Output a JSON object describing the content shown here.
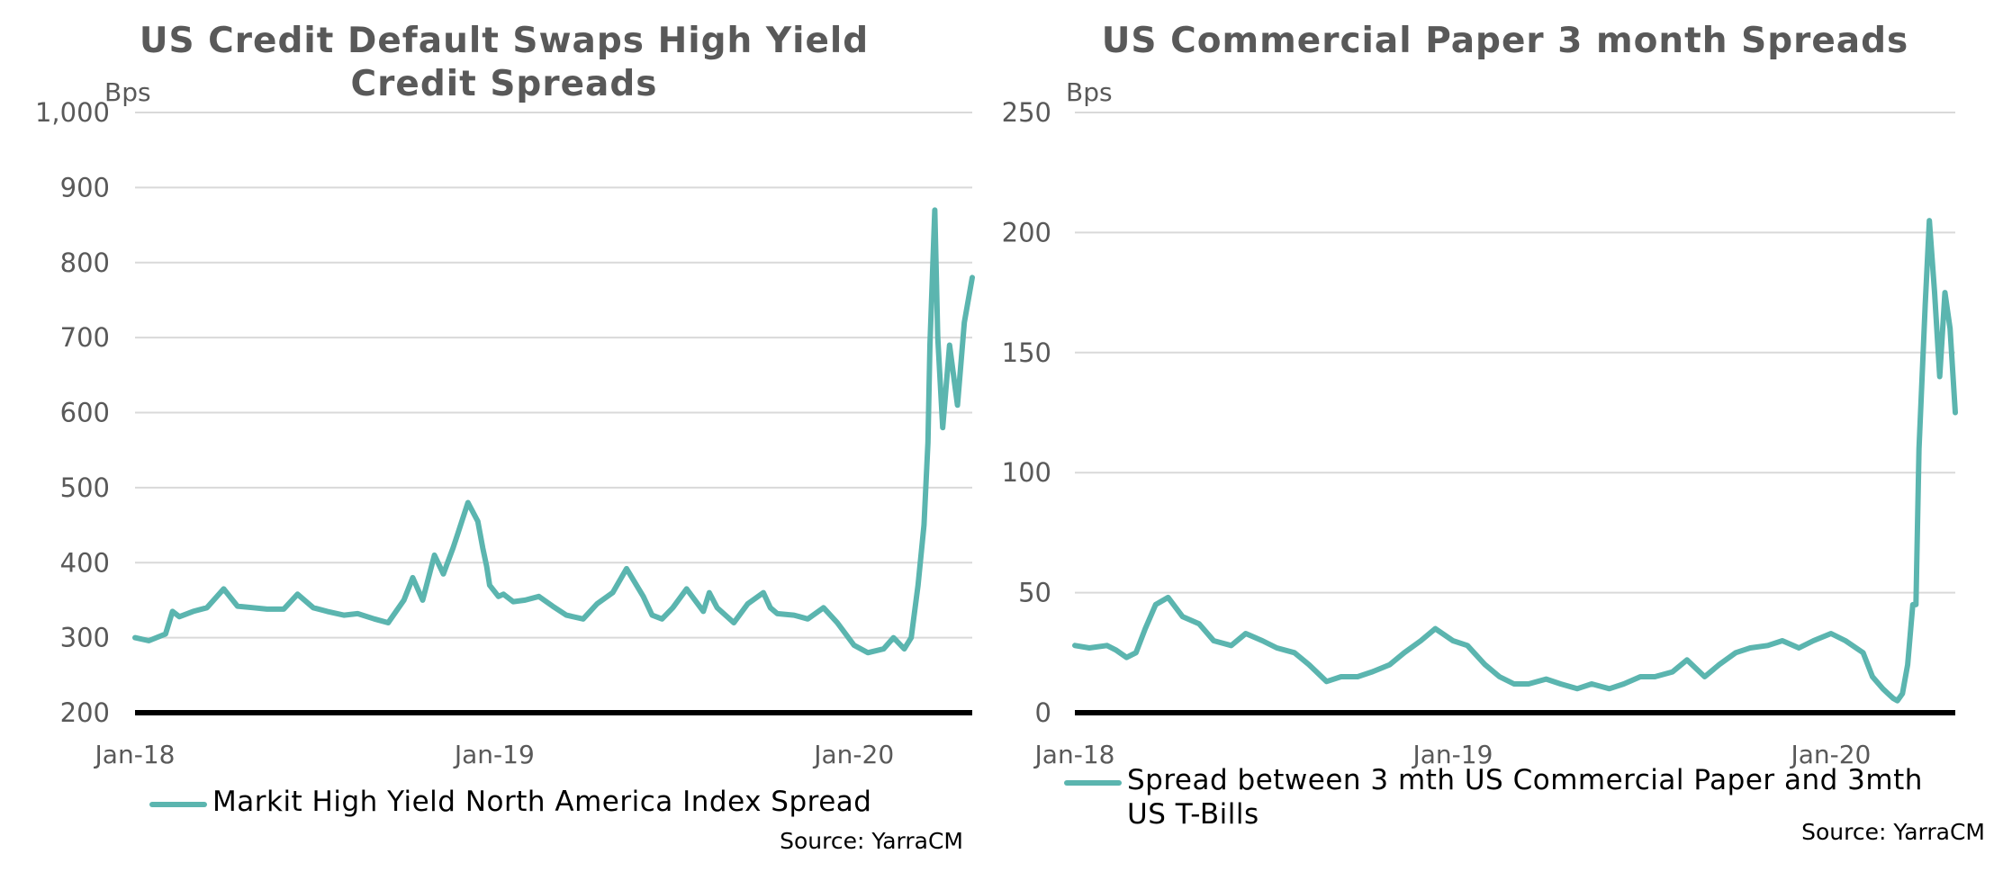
{
  "chart_data": [
    {
      "type": "line",
      "title": "US Credit Default Swaps High Yield Credit Spreads",
      "unit_label": "Bps",
      "ylim": [
        200,
        1000
      ],
      "y_ticks": [
        200,
        300,
        400,
        500,
        600,
        700,
        800,
        900,
        1000
      ],
      "y_tick_labels": [
        "200",
        "300",
        "400",
        "500",
        "600",
        "700",
        "800",
        "900",
        "1,000"
      ],
      "xlim": [
        "2018-01-01",
        "2020-04-30"
      ],
      "x_tick_labels": [
        {
          "date": "2018-01-01",
          "label": "Jan-18"
        },
        {
          "date": "2019-01-01",
          "label": "Jan-19"
        },
        {
          "date": "2020-01-01",
          "label": "Jan-20"
        }
      ],
      "grid": true,
      "legend_position": "bottom",
      "source": "Source: YarraCM",
      "line_color": "#5BB5AF",
      "series": [
        {
          "name": "Markit High Yield North America Index Spread",
          "x": [
            "2018-01-01",
            "2018-01-15",
            "2018-02-01",
            "2018-02-08",
            "2018-02-15",
            "2018-03-01",
            "2018-03-15",
            "2018-04-01",
            "2018-04-15",
            "2018-05-01",
            "2018-05-15",
            "2018-06-01",
            "2018-06-15",
            "2018-07-01",
            "2018-07-15",
            "2018-08-01",
            "2018-08-15",
            "2018-09-01",
            "2018-09-15",
            "2018-10-01",
            "2018-10-10",
            "2018-10-20",
            "2018-11-01",
            "2018-11-10",
            "2018-11-20",
            "2018-11-25",
            "2018-12-05",
            "2018-12-15",
            "2018-12-20",
            "2018-12-24",
            "2018-12-27",
            "2019-01-05",
            "2019-01-10",
            "2019-01-20",
            "2019-02-01",
            "2019-02-15",
            "2019-03-01",
            "2019-03-15",
            "2019-04-01",
            "2019-04-15",
            "2019-05-01",
            "2019-05-15",
            "2019-06-01",
            "2019-06-10",
            "2019-06-20",
            "2019-07-01",
            "2019-07-15",
            "2019-08-01",
            "2019-08-07",
            "2019-08-15",
            "2019-09-01",
            "2019-09-15",
            "2019-10-01",
            "2019-10-08",
            "2019-10-15",
            "2019-11-01",
            "2019-11-15",
            "2019-12-01",
            "2019-12-15",
            "2020-01-01",
            "2020-01-15",
            "2020-01-31",
            "2020-02-10",
            "2020-02-21",
            "2020-02-28",
            "2020-03-06",
            "2020-03-12",
            "2020-03-16",
            "2020-03-18",
            "2020-03-20",
            "2020-03-23",
            "2020-03-26",
            "2020-03-31",
            "2020-04-07",
            "2020-04-15",
            "2020-04-22",
            "2020-04-30"
          ],
          "values": [
            300,
            296,
            305,
            335,
            328,
            335,
            340,
            365,
            342,
            340,
            338,
            338,
            358,
            340,
            335,
            330,
            332,
            325,
            320,
            350,
            380,
            350,
            410,
            385,
            420,
            440,
            480,
            455,
            420,
            395,
            370,
            355,
            358,
            348,
            350,
            355,
            342,
            330,
            325,
            345,
            360,
            392,
            355,
            330,
            325,
            340,
            365,
            335,
            360,
            340,
            320,
            345,
            360,
            340,
            332,
            330,
            325,
            340,
            320,
            290,
            280,
            285,
            300,
            285,
            300,
            370,
            450,
            560,
            690,
            760,
            870,
            700,
            580,
            690,
            610,
            720,
            780
          ]
        }
      ]
    },
    {
      "type": "line",
      "title": "US Commercial Paper 3 month Spreads",
      "unit_label": "Bps",
      "ylim": [
        0,
        250
      ],
      "y_ticks": [
        0,
        50,
        100,
        150,
        200,
        250
      ],
      "y_tick_labels": [
        "0",
        "50",
        "100",
        "150",
        "200",
        "250"
      ],
      "xlim": [
        "2018-01-01",
        "2020-04-30"
      ],
      "x_tick_labels": [
        {
          "date": "2018-01-01",
          "label": "Jan-18"
        },
        {
          "date": "2019-01-01",
          "label": "Jan-19"
        },
        {
          "date": "2020-01-01",
          "label": "Jan-20"
        }
      ],
      "grid": true,
      "legend_position": "bottom",
      "source": "Source: YarraCM",
      "line_color": "#5BB5AF",
      "series": [
        {
          "name": "Spread between 3 mth US Commercial Paper and 3mth US T-Bills",
          "x": [
            "2018-01-01",
            "2018-01-15",
            "2018-02-01",
            "2018-02-10",
            "2018-02-20",
            "2018-03-01",
            "2018-03-10",
            "2018-03-20",
            "2018-04-01",
            "2018-04-15",
            "2018-05-01",
            "2018-05-15",
            "2018-06-01",
            "2018-06-15",
            "2018-07-01",
            "2018-07-15",
            "2018-08-01",
            "2018-08-15",
            "2018-09-01",
            "2018-09-15",
            "2018-10-01",
            "2018-10-15",
            "2018-11-01",
            "2018-11-15",
            "2018-12-01",
            "2018-12-15",
            "2019-01-01",
            "2019-01-15",
            "2019-02-01",
            "2019-02-15",
            "2019-03-01",
            "2019-03-15",
            "2019-04-01",
            "2019-04-15",
            "2019-05-01",
            "2019-05-15",
            "2019-06-01",
            "2019-06-15",
            "2019-07-01",
            "2019-07-15",
            "2019-08-01",
            "2019-08-15",
            "2019-09-01",
            "2019-09-15",
            "2019-10-01",
            "2019-10-15",
            "2019-11-01",
            "2019-11-15",
            "2019-12-01",
            "2019-12-15",
            "2020-01-01",
            "2020-01-15",
            "2020-02-01",
            "2020-02-10",
            "2020-02-20",
            "2020-02-25",
            "2020-03-01",
            "2020-03-05",
            "2020-03-10",
            "2020-03-15",
            "2020-03-18",
            "2020-03-20",
            "2020-03-23",
            "2020-03-26",
            "2020-04-01",
            "2020-04-05",
            "2020-04-10",
            "2020-04-15",
            "2020-04-20",
            "2020-04-25",
            "2020-04-30"
          ],
          "values": [
            28,
            27,
            28,
            26,
            23,
            25,
            35,
            45,
            48,
            40,
            37,
            30,
            28,
            33,
            30,
            27,
            25,
            20,
            13,
            15,
            15,
            17,
            20,
            25,
            30,
            35,
            30,
            28,
            20,
            15,
            12,
            12,
            14,
            12,
            10,
            12,
            10,
            12,
            15,
            15,
            17,
            22,
            15,
            20,
            25,
            27,
            28,
            30,
            27,
            30,
            33,
            30,
            25,
            15,
            10,
            8,
            6,
            5,
            8,
            20,
            35,
            45,
            45,
            110,
            170,
            205,
            175,
            140,
            175,
            160,
            125
          ]
        }
      ]
    }
  ]
}
